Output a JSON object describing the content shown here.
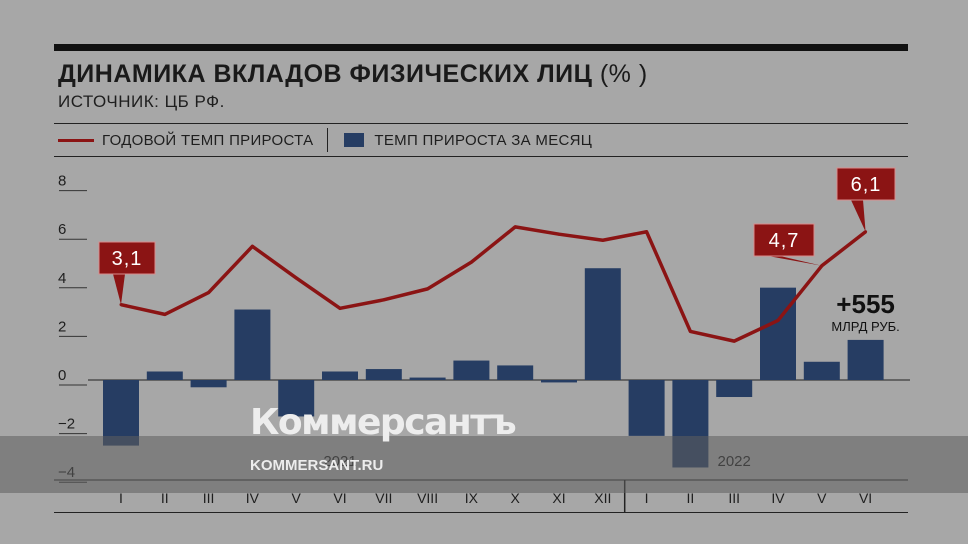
{
  "chart_data": {
    "type": "bar",
    "title": "ДИНАМИКА ВКЛАДОВ ФИЗИЧЕСКИХ ЛИЦ",
    "title_unit": "(% )",
    "subtitle": "ИСТОЧНИК: ЦБ РФ.",
    "legend": {
      "line_label": "ГОДОВОЙ ТЕМП ПРИРОСТА",
      "bar_label": "ТЕМП ПРИРОСТА ЗА МЕСЯЦ"
    },
    "categories": [
      "I",
      "II",
      "III",
      "IV",
      "V",
      "VI",
      "VII",
      "VIII",
      "IX",
      "X",
      "XI",
      "XII",
      "I",
      "II",
      "III",
      "IV",
      "V",
      "VI"
    ],
    "year_labels": [
      {
        "label": "2021",
        "start_index": 0,
        "end_index": 11
      },
      {
        "label": "2022",
        "start_index": 12,
        "end_index": 17
      }
    ],
    "y_ticks": [
      "8",
      "6",
      "4",
      "2",
      "0",
      "−2",
      "−4"
    ],
    "ylim": [
      -4,
      8
    ],
    "series": [
      {
        "name": "ТЕМП ПРИРОСТА ЗА МЕСЯЦ",
        "kind": "bar",
        "color": "#263d63",
        "values": [
          -2.7,
          0.35,
          -0.3,
          2.9,
          -1.5,
          0.35,
          0.45,
          0.1,
          0.8,
          0.6,
          -0.1,
          4.6,
          -2.3,
          -3.6,
          -0.7,
          3.8,
          0.75,
          1.65
        ]
      },
      {
        "name": "ГОДОВОЙ ТЕМП ПРИРОСТА",
        "kind": "line",
        "color": "#8b1414",
        "values": [
          3.1,
          2.7,
          3.6,
          5.5,
          4.2,
          2.95,
          3.3,
          3.75,
          4.85,
          6.3,
          6.0,
          5.75,
          6.1,
          2.0,
          1.6,
          2.45,
          4.7,
          6.1
        ]
      }
    ],
    "annotations": [
      {
        "index": 0,
        "text": "3,1"
      },
      {
        "index": 16,
        "text": "4,7"
      },
      {
        "index": 17,
        "text": "6,1"
      }
    ],
    "bar_annotation": {
      "index": 17,
      "value_text": "+555",
      "unit_text": "МЛРД РУБ."
    }
  },
  "watermark": {
    "logo": "Коммерсантъ",
    "url": "KOMMERSANT.RU"
  }
}
